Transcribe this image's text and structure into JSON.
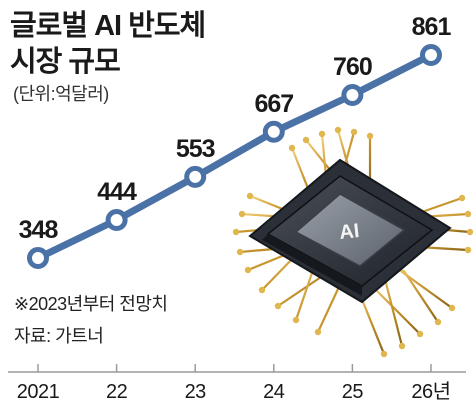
{
  "chart_data": {
    "type": "line",
    "title_lines": [
      "글로벌 AI 반도체",
      "시장 규모"
    ],
    "unit": "(단위:억달러)",
    "categories": [
      "2021",
      "22",
      "23",
      "24",
      "25",
      "26년"
    ],
    "series": [
      {
        "values": [
          348,
          444,
          553,
          667,
          760,
          861
        ],
        "labels": [
          "348",
          "444",
          "553",
          "667",
          "760",
          "861"
        ]
      }
    ],
    "ylim": [
      300,
      880
    ],
    "grid": false,
    "legend": "none",
    "notes": [
      "※2023년부터 전망치",
      "자료: 가트너"
    ],
    "chip_label": "AI",
    "colors": {
      "line": "#4a72a6",
      "marker_fill": "#ffffff",
      "marker_stroke": "#4a72a6",
      "axis": "#9a9a9a",
      "text": "#1a1a1a",
      "chip_gold": "#d4a63a"
    }
  }
}
